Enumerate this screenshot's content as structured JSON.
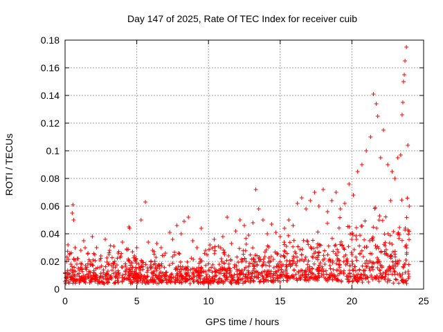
{
  "chart_data": {
    "type": "scatter",
    "title": "Day 147 of 2025, Rate Of TEC Index for receiver cuib",
    "xlabel": "GPS time / hours",
    "ylabel": "ROTI / TECUs",
    "xlim": [
      0,
      25
    ],
    "ylim": [
      0,
      0.18
    ],
    "xticks": [
      0,
      5,
      10,
      15,
      20,
      25
    ],
    "xtick_labels": [
      "0",
      "5",
      "10",
      "15",
      "20",
      "25"
    ],
    "yticks": [
      0,
      0.02,
      0.04,
      0.06,
      0.08,
      0.1,
      0.12,
      0.14,
      0.16,
      0.18
    ],
    "ytick_labels": [
      "0",
      "0.02",
      "0.04",
      "0.06",
      "0.08",
      "0.1",
      "0.12",
      "0.14",
      "0.16",
      "0.18"
    ],
    "grid": true,
    "marker": "plus",
    "color": "#ff0000",
    "series": [
      {
        "name": "ROTI",
        "x": [
          0.1,
          0.2,
          0.3,
          0.4,
          0.5,
          0.55,
          0.6,
          0.7,
          0.9,
          1.1,
          1.3,
          1.6,
          1.9,
          2.2,
          2.5,
          2.8,
          3.1,
          3.4,
          3.7,
          4.0,
          4.3,
          4.45,
          4.5,
          4.7,
          5.0,
          5.3,
          5.6,
          5.8,
          6.1,
          6.4,
          6.7,
          7.0,
          7.3,
          7.5,
          7.8,
          8.1,
          8.3,
          8.6,
          8.9,
          9.2,
          9.5,
          9.8,
          10.1,
          10.4,
          10.7,
          11.0,
          11.3,
          11.6,
          11.9,
          12.2,
          12.5,
          12.8,
          13.1,
          13.3,
          13.5,
          13.8,
          14.1,
          14.4,
          14.7,
          15.0,
          15.3,
          15.6,
          15.9,
          16.2,
          16.5,
          16.8,
          17.1,
          17.4,
          17.7,
          18.0,
          18.3,
          18.6,
          18.9,
          19.2,
          19.5,
          19.8,
          20.1,
          20.4,
          20.7,
          21.0,
          21.3,
          21.5,
          21.7,
          21.8,
          22.0,
          22.2,
          22.5,
          22.8,
          23.0,
          23.2,
          23.4,
          23.5,
          23.55,
          23.6,
          23.65,
          23.7,
          23.8,
          23.9,
          24.0
        ],
        "y": [
          0.02,
          0.032,
          0.025,
          0.018,
          0.055,
          0.061,
          0.05,
          0.03,
          0.022,
          0.028,
          0.035,
          0.026,
          0.038,
          0.03,
          0.024,
          0.036,
          0.028,
          0.031,
          0.026,
          0.034,
          0.029,
          0.045,
          0.044,
          0.027,
          0.03,
          0.05,
          0.063,
          0.034,
          0.028,
          0.033,
          0.03,
          0.026,
          0.041,
          0.036,
          0.046,
          0.04,
          0.049,
          0.052,
          0.035,
          0.03,
          0.044,
          0.028,
          0.032,
          0.036,
          0.031,
          0.038,
          0.052,
          0.033,
          0.042,
          0.05,
          0.046,
          0.039,
          0.048,
          0.072,
          0.058,
          0.05,
          0.04,
          0.047,
          0.041,
          0.038,
          0.044,
          0.05,
          0.046,
          0.062,
          0.066,
          0.058,
          0.064,
          0.07,
          0.06,
          0.072,
          0.056,
          0.064,
          0.07,
          0.058,
          0.062,
          0.076,
          0.068,
          0.085,
          0.09,
          0.1,
          0.11,
          0.141,
          0.134,
          0.125,
          0.095,
          0.115,
          0.09,
          0.085,
          0.08,
          0.095,
          0.097,
          0.126,
          0.135,
          0.15,
          0.155,
          0.165,
          0.175,
          0.104,
          0.06
        ],
        "bands": [
          {
            "x0": 0.0,
            "x1": 2.5,
            "low": 0.004,
            "high": 0.03
          },
          {
            "x0": 2.5,
            "x1": 5.0,
            "low": 0.004,
            "high": 0.03
          },
          {
            "x0": 5.0,
            "x1": 7.5,
            "low": 0.004,
            "high": 0.028
          },
          {
            "x0": 7.5,
            "x1": 10.0,
            "low": 0.004,
            "high": 0.027
          },
          {
            "x0": 10.0,
            "x1": 12.5,
            "low": 0.004,
            "high": 0.032
          },
          {
            "x0": 12.5,
            "x1": 15.0,
            "low": 0.005,
            "high": 0.036
          },
          {
            "x0": 15.0,
            "x1": 17.0,
            "low": 0.006,
            "high": 0.04
          },
          {
            "x0": 17.0,
            "x1": 19.0,
            "low": 0.006,
            "high": 0.048
          },
          {
            "x0": 19.0,
            "x1": 21.0,
            "low": 0.005,
            "high": 0.055
          },
          {
            "x0": 21.0,
            "x1": 23.0,
            "low": 0.004,
            "high": 0.065
          },
          {
            "x0": 23.0,
            "x1": 24.0,
            "low": 0.004,
            "high": 0.075
          }
        ]
      }
    ]
  }
}
